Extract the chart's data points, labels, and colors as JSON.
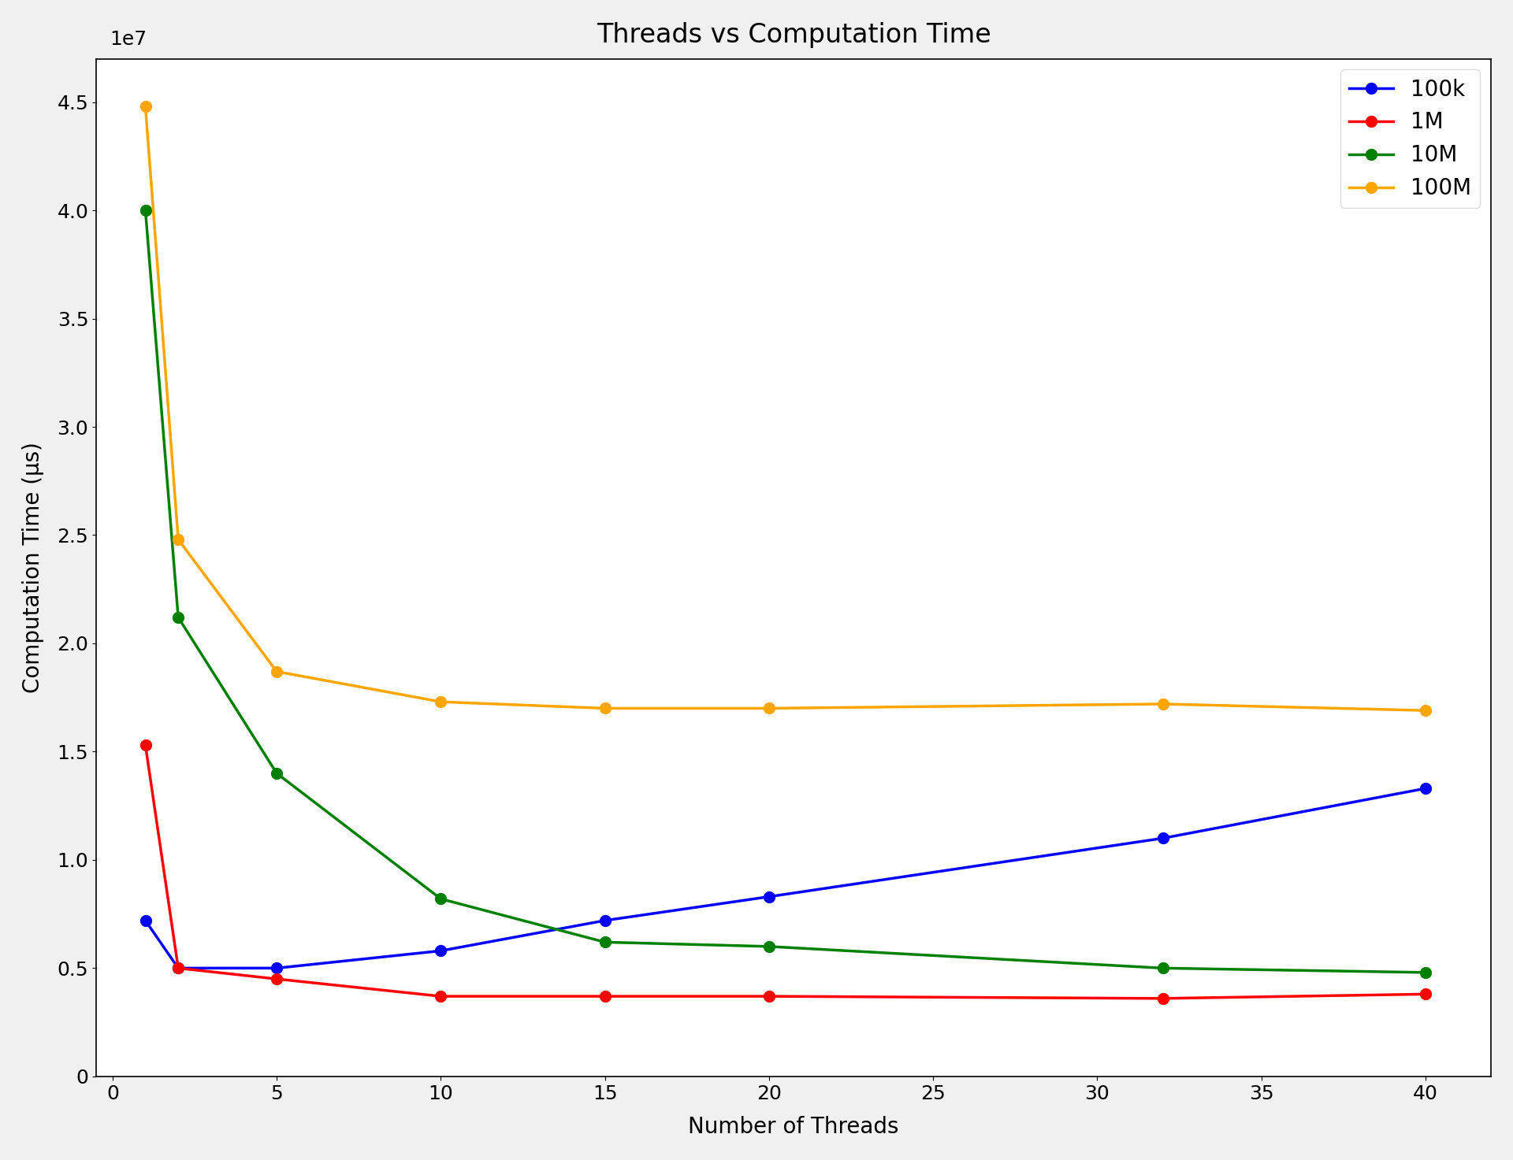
{
  "title": "Threads vs Computation Time",
  "xlabel": "Number of Threads",
  "ylabel": "Computation Time (μs)",
  "threads": [
    1,
    2,
    5,
    10,
    15,
    20,
    32,
    40
  ],
  "series": [
    {
      "label": "100k",
      "color": "blue",
      "values": [
        7200000,
        5000000,
        5000000,
        5800000,
        7200000,
        8300000,
        11000000,
        13300000
      ]
    },
    {
      "label": "1M",
      "color": "red",
      "values": [
        15300000,
        5000000,
        4500000,
        3700000,
        3700000,
        3700000,
        3600000,
        3800000
      ]
    },
    {
      "label": "10M",
      "color": "green",
      "values": [
        40000000,
        21200000,
        14000000,
        8200000,
        6200000,
        6000000,
        5000000,
        4800000
      ]
    },
    {
      "label": "100M",
      "color": "orange",
      "values": [
        44800000,
        24800000,
        18700000,
        17300000,
        17000000,
        17000000,
        17200000,
        16900000
      ]
    }
  ],
  "ylim": [
    0,
    47000000
  ],
  "xlim": [
    -0.5,
    42
  ],
  "yticks": [
    0,
    5000000,
    10000000,
    15000000,
    20000000,
    25000000,
    30000000,
    35000000,
    40000000,
    45000000
  ],
  "ytick_labels": [
    "0",
    "0.5",
    "1.0",
    "1.5",
    "2.0",
    "2.5",
    "3.0",
    "3.5",
    "4.0",
    "4.5"
  ],
  "xticks": [
    0,
    5,
    10,
    15,
    20,
    25,
    30,
    35,
    40
  ],
  "figsize": [
    19.2,
    14.73
  ],
  "dpi": 100,
  "title_fontsize": 24,
  "label_fontsize": 20,
  "tick_fontsize": 18,
  "legend_fontsize": 20,
  "linewidth": 2.5,
  "markersize": 10,
  "marker": "o",
  "bg_color": "#f0f0f0"
}
